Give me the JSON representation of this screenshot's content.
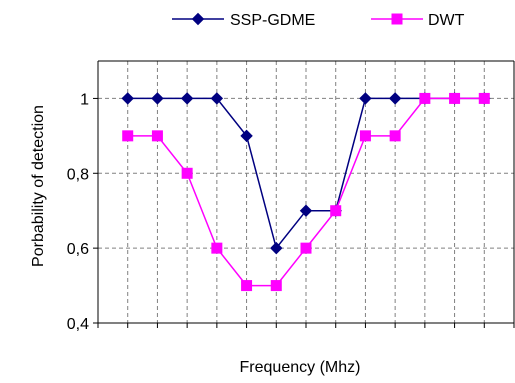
{
  "chart_data": {
    "type": "line",
    "title": "",
    "xlabel": "Frequency (Mhz)",
    "ylabel": "Porbability of detection",
    "x": [
      1,
      2,
      3,
      4,
      5,
      6,
      7,
      8,
      9,
      10,
      11,
      12,
      13
    ],
    "ylim": [
      0.4,
      1.1
    ],
    "yticks": [
      {
        "value": 0.4,
        "label": "0,4"
      },
      {
        "value": 0.6,
        "label": "0,6"
      },
      {
        "value": 0.8,
        "label": "0,8"
      },
      {
        "value": 1.0,
        "label": "1"
      }
    ],
    "grid": true,
    "legend_position": "top",
    "series": [
      {
        "name": "SSP-GDME",
        "color": "#000080",
        "marker": "diamond",
        "values": [
          1.0,
          1.0,
          1.0,
          1.0,
          0.9,
          0.6,
          0.7,
          0.7,
          1.0,
          1.0,
          1.0,
          1.0,
          1.0
        ]
      },
      {
        "name": "DWT",
        "color": "#FF00FF",
        "marker": "square",
        "values": [
          0.9,
          0.9,
          0.8,
          0.6,
          0.5,
          0.5,
          0.6,
          0.7,
          0.9,
          0.9,
          1.0,
          1.0,
          1.0
        ]
      }
    ]
  }
}
